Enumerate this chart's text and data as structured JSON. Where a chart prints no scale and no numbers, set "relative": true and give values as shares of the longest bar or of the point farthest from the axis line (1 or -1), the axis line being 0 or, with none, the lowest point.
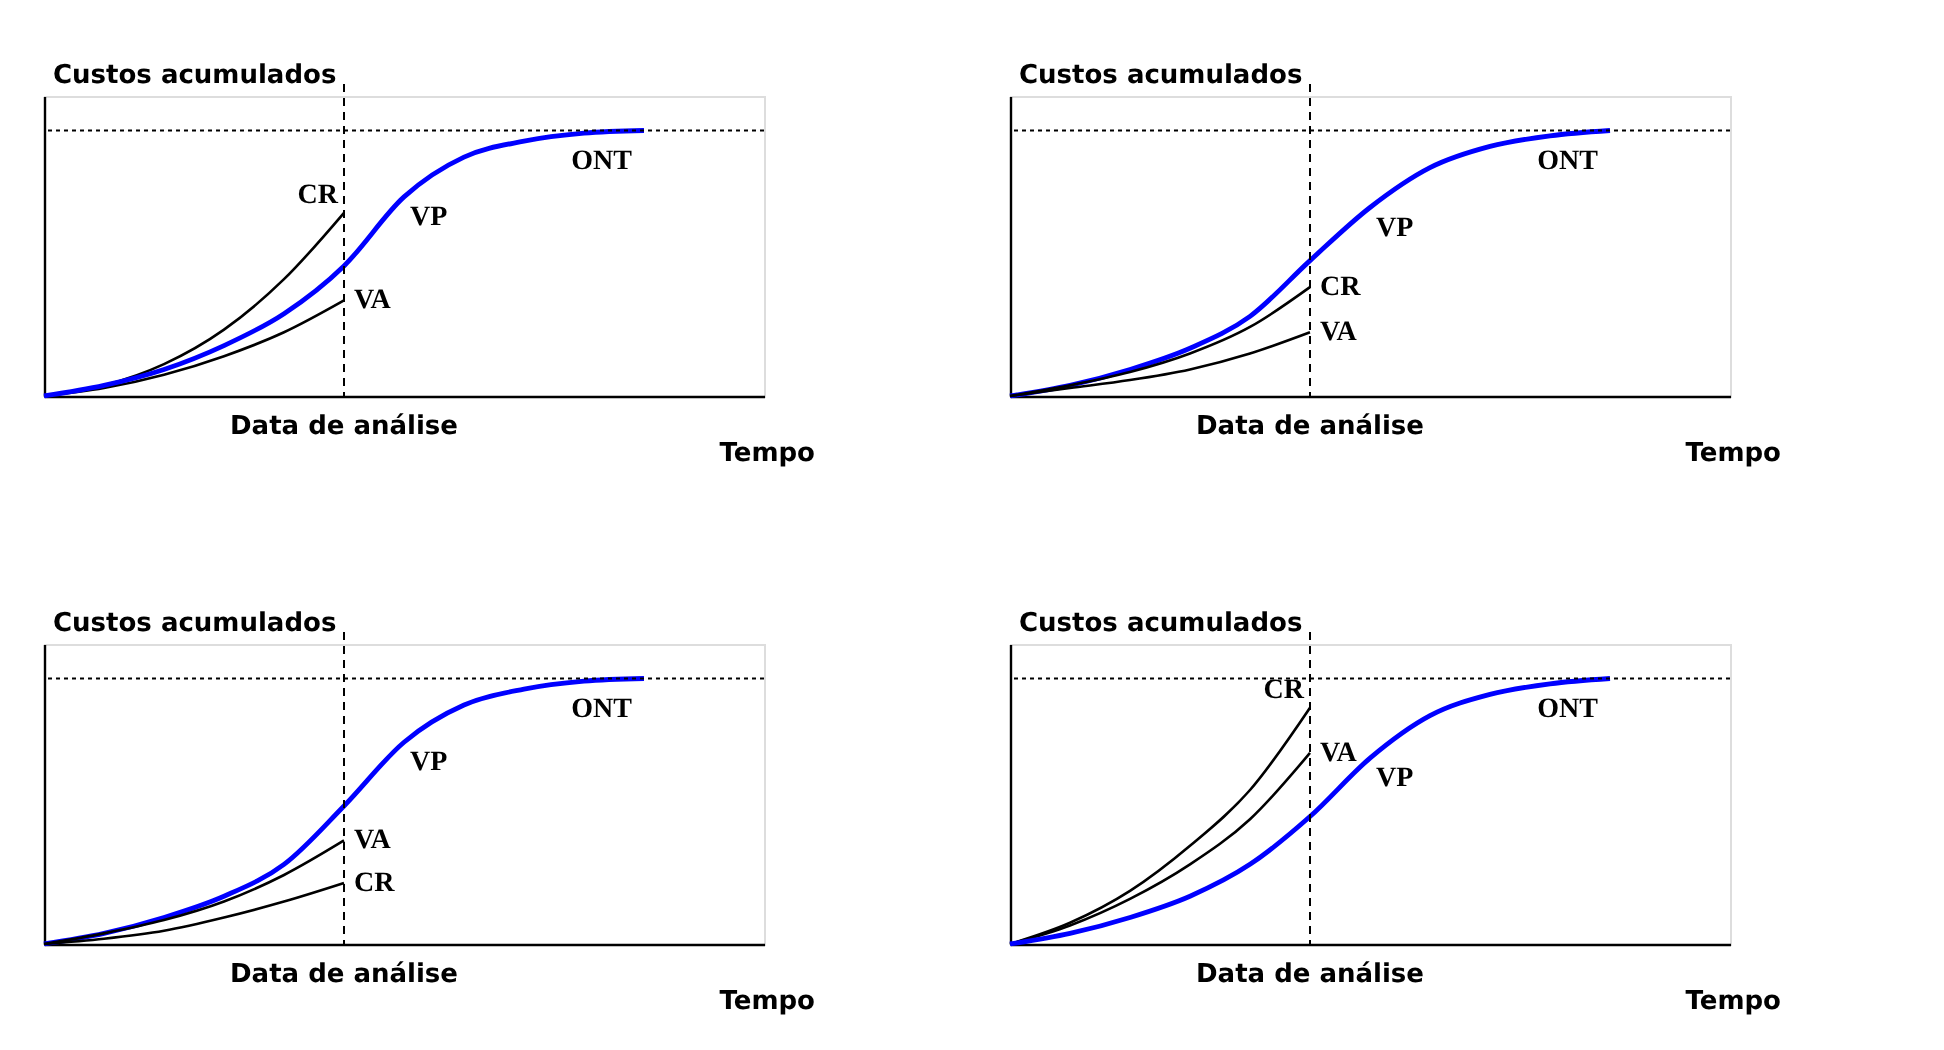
{
  "chart_data": [
    {
      "type": "line",
      "relative": true,
      "ylabel": "Custos acumulados",
      "xlabel": "Tempo",
      "categories": [
        null,
        null,
        null,
        null,
        null,
        null,
        null,
        null,
        null,
        null,
        null
      ],
      "series": [
        {
          "name": "CR",
          "color": "#000000",
          "values": [
            0,
            0.04,
            0.12,
            0.25,
            0.44,
            0.69,
            null,
            null,
            null,
            null,
            null
          ]
        },
        {
          "name": "VA",
          "color": "#000000",
          "values": [
            0,
            0.03,
            0.08,
            0.15,
            0.24,
            0.36,
            null,
            null,
            null,
            null,
            null
          ]
        },
        {
          "name": "VP",
          "color": "#0000ff",
          "values": [
            0,
            0.04,
            0.1,
            0.19,
            0.31,
            0.49,
            0.75,
            0.9,
            0.96,
            0.99,
            1.0
          ]
        }
      ],
      "ref_lines": [
        {
          "axis": "x",
          "label": "Data de análise",
          "line_style": "dashed"
        },
        {
          "axis": "y",
          "value": 1.0,
          "label": "ONT",
          "line_style": "dotted"
        }
      ]
    },
    {
      "type": "line",
      "relative": true,
      "ylabel": "Custos acumulados",
      "xlabel": "Tempo",
      "categories": [
        null,
        null,
        null,
        null,
        null,
        null,
        null,
        null,
        null,
        null,
        null
      ],
      "series": [
        {
          "name": "VP",
          "color": "#0000ff",
          "values": [
            0,
            0.04,
            0.1,
            0.18,
            0.3,
            0.51,
            0.71,
            0.86,
            0.94,
            0.98,
            1.0
          ]
        },
        {
          "name": "CR",
          "color": "#000000",
          "values": [
            0,
            0.04,
            0.09,
            0.16,
            0.26,
            0.41,
            null,
            null,
            null,
            null,
            null
          ]
        },
        {
          "name": "VA",
          "color": "#000000",
          "values": [
            0,
            0.03,
            0.06,
            0.1,
            0.16,
            0.24,
            null,
            null,
            null,
            null,
            null
          ]
        }
      ],
      "ref_lines": [
        {
          "axis": "x",
          "label": "Data de análise",
          "line_style": "dashed"
        },
        {
          "axis": "y",
          "value": 1.0,
          "label": "ONT",
          "line_style": "dotted"
        }
      ]
    },
    {
      "type": "line",
      "relative": true,
      "ylabel": "Custos acumulados",
      "xlabel": "Tempo",
      "categories": [
        null,
        null,
        null,
        null,
        null,
        null,
        null,
        null,
        null,
        null,
        null
      ],
      "series": [
        {
          "name": "VP",
          "color": "#0000ff",
          "values": [
            0,
            0.04,
            0.1,
            0.18,
            0.3,
            0.52,
            0.76,
            0.9,
            0.96,
            0.99,
            1.0
          ]
        },
        {
          "name": "VA",
          "color": "#000000",
          "values": [
            0,
            0.04,
            0.09,
            0.16,
            0.26,
            0.39,
            null,
            null,
            null,
            null,
            null
          ]
        },
        {
          "name": "CR",
          "color": "#000000",
          "values": [
            0,
            0.02,
            0.05,
            0.1,
            0.16,
            0.23,
            null,
            null,
            null,
            null,
            null
          ]
        }
      ],
      "ref_lines": [
        {
          "axis": "x",
          "label": "Data de análise",
          "line_style": "dashed"
        },
        {
          "axis": "y",
          "value": 1.0,
          "label": "ONT",
          "line_style": "dotted"
        }
      ]
    },
    {
      "type": "line",
      "relative": true,
      "ylabel": "Custos acumulados",
      "xlabel": "Tempo",
      "categories": [
        null,
        null,
        null,
        null,
        null,
        null,
        null,
        null,
        null,
        null,
        null
      ],
      "series": [
        {
          "name": "CR",
          "color": "#000000",
          "values": [
            0,
            0.08,
            0.2,
            0.37,
            0.58,
            0.89,
            null,
            null,
            null,
            null,
            null
          ]
        },
        {
          "name": "VA",
          "color": "#000000",
          "values": [
            0,
            0.07,
            0.17,
            0.3,
            0.47,
            0.72,
            null,
            null,
            null,
            null,
            null
          ]
        },
        {
          "name": "VP",
          "color": "#0000ff",
          "values": [
            0,
            0.04,
            0.1,
            0.18,
            0.3,
            0.48,
            0.7,
            0.86,
            0.94,
            0.98,
            1.0
          ]
        }
      ],
      "ref_lines": [
        {
          "axis": "x",
          "label": "Data de análise",
          "line_style": "dashed"
        },
        {
          "axis": "y",
          "value": 1.0,
          "label": "ONT",
          "line_style": "dotted"
        }
      ]
    }
  ]
}
